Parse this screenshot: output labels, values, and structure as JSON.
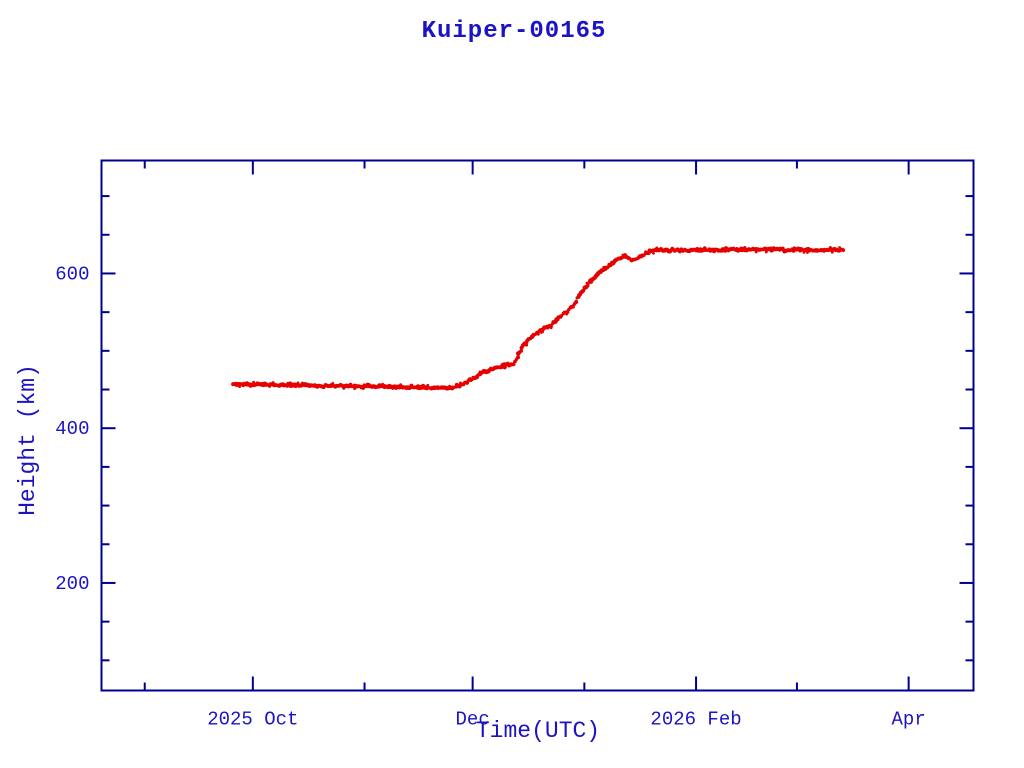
{
  "colors": {
    "axis": "#000090",
    "text": "#1c14c4",
    "marker_red": "#e60000",
    "line_cyan": "#45c8c8",
    "background": "#ffffff"
  },
  "chart_data": {
    "type": "line",
    "title": "Kuiper-00165",
    "xlabel": "Time(UTC)",
    "ylabel": "Height (km)",
    "x_axis_note": "time in days since 2025-09-01",
    "xlim_days": [
      -12,
      230
    ],
    "ylim": [
      61,
      746
    ],
    "grid": false,
    "legend": "none",
    "x_ticks": [
      {
        "d": 0,
        "label": "",
        "major": false
      },
      {
        "d": 30,
        "label": "2025 Oct",
        "major": true
      },
      {
        "d": 61,
        "label": "",
        "major": false
      },
      {
        "d": 91,
        "label": "Dec",
        "major": true
      },
      {
        "d": 122,
        "label": "",
        "major": false
      },
      {
        "d": 153,
        "label": "2026 Feb",
        "major": true
      },
      {
        "d": 181,
        "label": "",
        "major": false
      },
      {
        "d": 212,
        "label": "Apr",
        "major": true
      }
    ],
    "y_ticks": [
      {
        "v": 100,
        "label": "",
        "major": false
      },
      {
        "v": 150,
        "label": "",
        "major": false
      },
      {
        "v": 200,
        "label": "200",
        "major": true
      },
      {
        "v": 250,
        "label": "",
        "major": false
      },
      {
        "v": 300,
        "label": "",
        "major": false
      },
      {
        "v": 350,
        "label": "",
        "major": false
      },
      {
        "v": 400,
        "label": "400",
        "major": true
      },
      {
        "v": 450,
        "label": "",
        "major": false
      },
      {
        "v": 500,
        "label": "",
        "major": false
      },
      {
        "v": 550,
        "label": "",
        "major": false
      },
      {
        "v": 600,
        "label": "600",
        "major": true
      },
      {
        "v": 650,
        "label": "",
        "major": false
      },
      {
        "v": 700,
        "label": "",
        "major": false
      }
    ],
    "series": [
      {
        "name": "height-km",
        "marker": "dense-red-points",
        "underline_color": "#45c8c8",
        "marker_color": "#e60000",
        "points_day_height": [
          [
            24.6,
            457.0
          ],
          [
            30,
            456.5
          ],
          [
            38,
            455.8
          ],
          [
            45,
            455.2
          ],
          [
            52,
            454.8
          ],
          [
            60,
            454.2
          ],
          [
            66,
            453.8
          ],
          [
            72,
            453.2
          ],
          [
            76,
            452.8
          ],
          [
            80,
            452.2
          ],
          [
            84.5,
            451.2
          ],
          [
            88,
            456.0
          ],
          [
            91,
            464.0
          ],
          [
            94,
            472.5
          ],
          [
            97,
            477.5
          ],
          [
            100,
            480.5
          ],
          [
            102.5,
            483.5
          ],
          [
            105,
            506.0
          ],
          [
            107,
            516.0
          ],
          [
            109.3,
            525.0
          ],
          [
            111,
            529.0
          ],
          [
            112.5,
            531.5
          ],
          [
            115,
            543.0
          ],
          [
            118.7,
            557.0
          ],
          [
            120.9,
            574.5
          ],
          [
            123.7,
            589.7
          ],
          [
            126.5,
            602.6
          ],
          [
            129.3,
            611.3
          ],
          [
            132,
            619.8
          ],
          [
            133.4,
            622.0
          ],
          [
            134.8,
            617.7
          ],
          [
            136.2,
            617.7
          ],
          [
            137.6,
            622.0
          ],
          [
            140.4,
            628.5
          ],
          [
            143.2,
            630.7
          ],
          [
            146,
            629.8
          ],
          [
            150,
            630.2
          ],
          [
            155,
            630.5
          ],
          [
            160,
            630.8
          ],
          [
            165,
            630.5
          ],
          [
            170,
            630.8
          ],
          [
            175,
            631.0
          ],
          [
            180,
            630.4
          ],
          [
            185,
            630.2
          ],
          [
            190,
            630.6
          ],
          [
            194,
            630.4
          ]
        ]
      }
    ]
  }
}
